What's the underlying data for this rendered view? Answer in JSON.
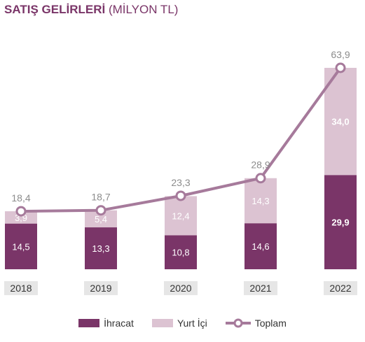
{
  "title": {
    "bold": "SATIŞ GELİRLERİ",
    "sub": "(MİLYON TL)"
  },
  "colors": {
    "export": "#7a3568",
    "domestic": "#dcc3d2",
    "total_line": "#a67a9b",
    "title": "#7a3568",
    "axis_label_bg": "#e6e6e6",
    "total_label": "#8c8c8c"
  },
  "chart_data": {
    "type": "bar",
    "stacked": true,
    "categories": [
      "2018",
      "2019",
      "2020",
      "2021",
      "2022"
    ],
    "series": [
      {
        "name": "İhracat",
        "values": [
          14.5,
          13.3,
          10.8,
          14.6,
          29.9
        ],
        "labels": [
          "14,5",
          "13,3",
          "10,8",
          "14,6",
          "29,9"
        ]
      },
      {
        "name": "Yurt İçi",
        "values": [
          3.9,
          5.4,
          12.4,
          14.3,
          34.0
        ],
        "labels": [
          "3,9",
          "5,4",
          "12,4",
          "14,3",
          "34,0"
        ]
      }
    ],
    "line": {
      "name": "Toplam",
      "values": [
        18.4,
        18.7,
        23.3,
        28.9,
        63.9
      ],
      "labels": [
        "18,4",
        "18,7",
        "23,3",
        "28,9",
        "63,9"
      ]
    },
    "ylim": [
      0,
      63.9
    ],
    "grid": false,
    "legend_position": "bottom"
  }
}
